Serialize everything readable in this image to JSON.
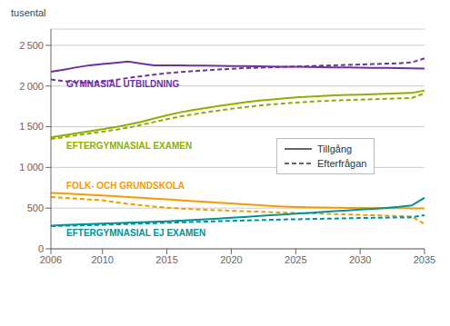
{
  "chart_data": {
    "type": "line",
    "ylabel": "tusental",
    "x": [
      2006,
      2007,
      2008,
      2009,
      2010,
      2011,
      2012,
      2013,
      2014,
      2015,
      2016,
      2017,
      2018,
      2019,
      2020,
      2021,
      2022,
      2023,
      2024,
      2025,
      2026,
      2027,
      2028,
      2029,
      2030,
      2031,
      2032,
      2033,
      2034,
      2035
    ],
    "xlim": [
      2006,
      2035
    ],
    "xticks": [
      2006,
      2010,
      2015,
      2020,
      2025,
      2030,
      2035
    ],
    "ylim": [
      0,
      2700
    ],
    "yticks": [
      0,
      500,
      {
        "value": 1000,
        "label": "1 000"
      },
      {
        "value": 1500,
        "label": "1 500"
      },
      {
        "value": 2000,
        "label": "2 000"
      },
      {
        "value": 2500,
        "label": "2 500"
      }
    ],
    "grid": true,
    "legend": "right",
    "series": [
      {
        "name": "Tillgång",
        "color": "#7030a0",
        "line_style": "solid",
        "values": [
          2175,
          2200,
          2230,
          2255,
          2270,
          2285,
          2300,
          2275,
          2255,
          2255,
          2255,
          2252,
          2250,
          2248,
          2246,
          2244,
          2242,
          2240,
          2238,
          2236,
          2234,
          2232,
          2230,
          2228,
          2226,
          2224,
          2222,
          2220,
          2218,
          2216
        ]
      },
      {
        "name": "Efterfrågan",
        "color": "#7030a0",
        "line_style": "dashed",
        "values": [
          2080,
          2060,
          2045,
          2040,
          2055,
          2075,
          2100,
          2120,
          2140,
          2158,
          2172,
          2183,
          2193,
          2203,
          2212,
          2220,
          2225,
          2230,
          2235,
          2240,
          2245,
          2250,
          2255,
          2260,
          2265,
          2270,
          2275,
          2280,
          2290,
          2340
        ]
      },
      {
        "name": "Tillgång",
        "color": "#8db000",
        "line_style": "solid",
        "values": [
          1370,
          1395,
          1420,
          1445,
          1470,
          1495,
          1525,
          1560,
          1600,
          1640,
          1675,
          1705,
          1730,
          1755,
          1778,
          1800,
          1818,
          1833,
          1847,
          1860,
          1870,
          1878,
          1885,
          1890,
          1895,
          1900,
          1905,
          1910,
          1915,
          1945
        ]
      },
      {
        "name": "Efterfrågan",
        "color": "#8db000",
        "line_style": "dashed",
        "values": [
          1350,
          1372,
          1395,
          1417,
          1440,
          1462,
          1488,
          1522,
          1558,
          1593,
          1625,
          1652,
          1676,
          1699,
          1720,
          1740,
          1757,
          1772,
          1785,
          1797,
          1807,
          1815,
          1822,
          1828,
          1833,
          1838,
          1843,
          1848,
          1853,
          1910
        ]
      },
      {
        "name": "Tillgång",
        "color": "#f59b00",
        "line_style": "solid",
        "values": [
          685,
          680,
          672,
          663,
          655,
          647,
          637,
          627,
          617,
          607,
          597,
          587,
          577,
          567,
          557,
          547,
          537,
          527,
          520,
          514,
          510,
          507,
          505,
          503,
          501,
          500,
          499,
          498,
          497,
          496
        ]
      },
      {
        "name": "Efterfrågan",
        "color": "#f59b00",
        "line_style": "dashed",
        "values": [
          635,
          626,
          616,
          606,
          596,
          573,
          552,
          535,
          520,
          506,
          495,
          487,
          480,
          473,
          467,
          462,
          457,
          450,
          446,
          441,
          437,
          432,
          427,
          422,
          418,
          413,
          408,
          403,
          398,
          305
        ]
      },
      {
        "name": "Tillgång",
        "color": "#00919a",
        "line_style": "solid",
        "values": [
          285,
          292,
          298,
          304,
          310,
          316,
          321,
          326,
          332,
          338,
          345,
          353,
          362,
          371,
          381,
          391,
          402,
          412,
          422,
          432,
          442,
          452,
          462,
          472,
          482,
          492,
          502,
          515,
          532,
          628
        ]
      },
      {
        "name": "Efterfrågan",
        "color": "#00919a",
        "line_style": "dashed",
        "values": [
          278,
          283,
          287,
          291,
          295,
          300,
          305,
          310,
          315,
          320,
          325,
          330,
          335,
          340,
          344,
          348,
          352,
          356,
          360,
          363,
          366,
          369,
          372,
          375,
          378,
          381,
          383,
          385,
          387,
          412
        ]
      }
    ],
    "annotations": [
      {
        "text": "GYMNASIAL UTBILDNING",
        "x": 2007.2,
        "y": 2030,
        "color": "#7030a0"
      },
      {
        "text": "EFTERGYMNASIAL EXAMEN",
        "x": 2007.2,
        "y": 1270,
        "color": "#8db000"
      },
      {
        "text": "FOLK- OCH GRUNDSKOLA",
        "x": 2007.2,
        "y": 780,
        "color": "#f59b00"
      },
      {
        "text": "EFTERGYMNASIAL EJ EXAMEN",
        "x": 2007.2,
        "y": 195,
        "color": "#00919a"
      }
    ]
  }
}
